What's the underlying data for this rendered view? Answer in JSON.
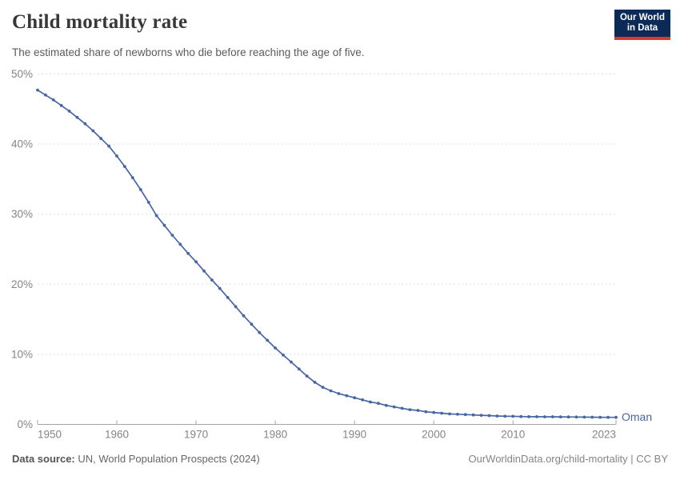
{
  "header": {
    "title": "Child mortality rate",
    "subtitle": "The estimated share of newborns who die before reaching the age of five.",
    "logo": {
      "line1": "Our World",
      "line2": "in Data"
    }
  },
  "chart_data": {
    "type": "line",
    "title": "Child mortality rate",
    "series": [
      {
        "name": "Oman",
        "color": "#4666a4",
        "x": [
          1950,
          1951,
          1952,
          1953,
          1954,
          1955,
          1956,
          1957,
          1958,
          1959,
          1960,
          1961,
          1962,
          1963,
          1964,
          1965,
          1966,
          1967,
          1968,
          1969,
          1970,
          1971,
          1972,
          1973,
          1974,
          1975,
          1976,
          1977,
          1978,
          1979,
          1980,
          1981,
          1982,
          1983,
          1984,
          1985,
          1986,
          1987,
          1988,
          1989,
          1990,
          1991,
          1992,
          1993,
          1994,
          1995,
          1996,
          1997,
          1998,
          1999,
          2000,
          2001,
          2002,
          2003,
          2004,
          2005,
          2006,
          2007,
          2008,
          2009,
          2010,
          2011,
          2012,
          2013,
          2014,
          2015,
          2016,
          2017,
          2018,
          2019,
          2020,
          2021,
          2022,
          2023
        ],
        "values": [
          47.7,
          47.0,
          46.3,
          45.5,
          44.7,
          43.8,
          42.9,
          41.9,
          40.8,
          39.7,
          38.3,
          36.8,
          35.2,
          33.5,
          31.7,
          29.8,
          28.4,
          27.0,
          25.7,
          24.4,
          23.2,
          21.9,
          20.6,
          19.4,
          18.1,
          16.8,
          15.5,
          14.3,
          13.1,
          12.0,
          10.9,
          9.9,
          8.9,
          7.9,
          6.9,
          6.0,
          5.3,
          4.8,
          4.4,
          4.1,
          3.8,
          3.5,
          3.2,
          3.0,
          2.7,
          2.5,
          2.3,
          2.1,
          2.0,
          1.8,
          1.7,
          1.6,
          1.5,
          1.45,
          1.4,
          1.35,
          1.3,
          1.25,
          1.2,
          1.17,
          1.15,
          1.12,
          1.1,
          1.1,
          1.09,
          1.08,
          1.07,
          1.06,
          1.05,
          1.04,
          1.03,
          1.02,
          1.01,
          1.0
        ]
      }
    ],
    "xlabel": "",
    "ylabel": "",
    "x_ticks": [
      1950,
      1960,
      1970,
      1980,
      1990,
      2000,
      2010,
      2023
    ],
    "y_ticks": [
      0,
      10,
      20,
      30,
      40,
      50
    ],
    "y_tick_labels": [
      "0%",
      "10%",
      "20%",
      "30%",
      "40%",
      "50%"
    ],
    "xlim": [
      1950,
      2023
    ],
    "ylim": [
      0,
      50
    ],
    "grid": "horizontal-dashed",
    "legend_position": "end-of-line",
    "end_label": "Oman",
    "unit": "%"
  },
  "footer": {
    "source_label": "Data source:",
    "source_text": "UN, World Population Prospects (2024)",
    "link": "OurWorldinData.org/child-mortality | CC BY"
  },
  "colors": {
    "line": "#4666a4",
    "grid": "#e0e0e0",
    "axis": "#a5a5a5",
    "tick_label": "#858585",
    "logo_bg": "#0b2a57",
    "logo_red": "#d93a2c"
  }
}
